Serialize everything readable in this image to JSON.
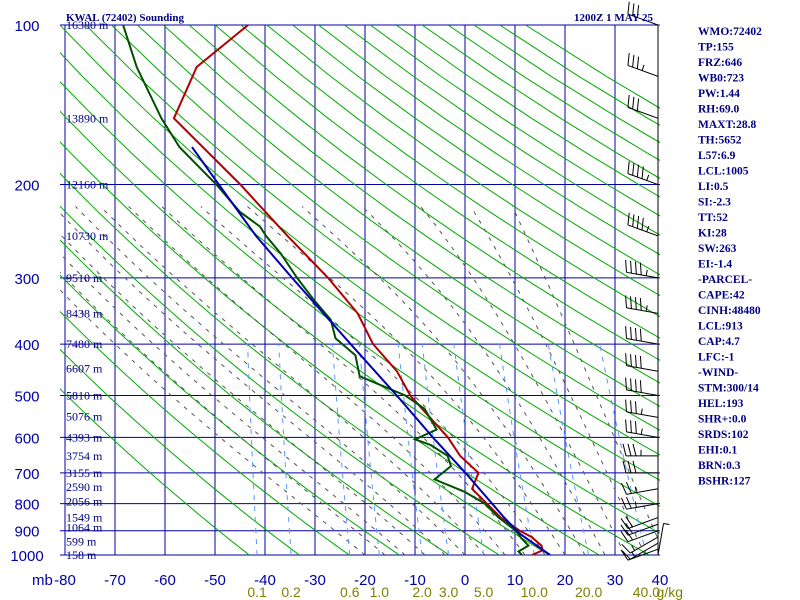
{
  "header": {
    "title": "KWAL (72402) Sounding",
    "time": "1200Z  1 MAY 25"
  },
  "chart_data": {
    "type": "line",
    "title": "KWAL (72402) Sounding",
    "x_unit_label": "mb",
    "mixing_ratio_unit": "g/kg",
    "pressure_ticks": [
      {
        "p": 100,
        "label": "100"
      },
      {
        "p": 200,
        "label": "200"
      },
      {
        "p": 300,
        "label": "300"
      },
      {
        "p": 400,
        "label": "400"
      },
      {
        "p": 500,
        "label": "500"
      },
      {
        "p": 600,
        "label": "600"
      },
      {
        "p": 700,
        "label": "700"
      },
      {
        "p": 800,
        "label": "800"
      },
      {
        "p": 900,
        "label": "900"
      },
      {
        "p": 1000,
        "label": "1000"
      }
    ],
    "temperature_ticks": [
      {
        "t": -80,
        "label": "-80"
      },
      {
        "t": -70,
        "label": "-70"
      },
      {
        "t": -60,
        "label": "-60"
      },
      {
        "t": -50,
        "label": "-50"
      },
      {
        "t": -40,
        "label": "-40"
      },
      {
        "t": -30,
        "label": "-30"
      },
      {
        "t": -20,
        "label": "-20"
      },
      {
        "t": -10,
        "label": "-10"
      },
      {
        "t": 0,
        "label": "0"
      },
      {
        "t": 10,
        "label": "10"
      },
      {
        "t": 20,
        "label": "20"
      },
      {
        "t": 30,
        "label": "30"
      },
      {
        "t": 40,
        "label": "40"
      }
    ],
    "mixing_ratio_labels": [
      {
        "w": 0.1,
        "label": "0.1"
      },
      {
        "w": 0.2,
        "label": "0.2"
      },
      {
        "w": 0.6,
        "label": "0.6"
      },
      {
        "w": 1.0,
        "label": "1.0"
      },
      {
        "w": 2.0,
        "label": "2.0"
      },
      {
        "w": 3.0,
        "label": "3.0"
      },
      {
        "w": 5.0,
        "label": "5.0"
      },
      {
        "w": 10.0,
        "label": "10.0"
      },
      {
        "w": 20.0,
        "label": "20.0"
      },
      {
        "w": 40.0,
        "label": "40.0"
      }
    ],
    "height_labels": [
      {
        "p": 1000,
        "label": "158 m"
      },
      {
        "p": 943,
        "label": "599 m"
      },
      {
        "p": 887,
        "label": "1064 m"
      },
      {
        "p": 850,
        "label": "1549 m"
      },
      {
        "p": 793,
        "label": "2056 m"
      },
      {
        "p": 745,
        "label": "2590 m"
      },
      {
        "p": 700,
        "label": "3155 m"
      },
      {
        "p": 650,
        "label": "3754 m"
      },
      {
        "p": 600,
        "label": "4393 m"
      },
      {
        "p": 548,
        "label": "5076 m"
      },
      {
        "p": 500,
        "label": "5810 m"
      },
      {
        "p": 445,
        "label": "6607 m"
      },
      {
        "p": 400,
        "label": "7480 m"
      },
      {
        "p": 350,
        "label": "8438 m"
      },
      {
        "p": 300,
        "label": "9510 m"
      },
      {
        "p": 250,
        "label": "10730 m"
      },
      {
        "p": 200,
        "label": "12160 m"
      },
      {
        "p": 150,
        "label": "13890 m"
      },
      {
        "p": 100,
        "label": "16380 m"
      }
    ],
    "series": [
      {
        "name": "temperature",
        "color": "#b00000",
        "points": [
          [
            1000,
            13.4
          ],
          [
            980,
            15.4
          ],
          [
            960,
            15.0
          ],
          [
            925,
            12.8
          ],
          [
            900,
            10.2
          ],
          [
            850,
            6.0
          ],
          [
            800,
            2.8
          ],
          [
            750,
            -0.6
          ],
          [
            700,
            0.2
          ],
          [
            650,
            -4.0
          ],
          [
            600,
            -7.0
          ],
          [
            550,
            -11.2
          ],
          [
            500,
            -15.8
          ],
          [
            450,
            -19.2
          ],
          [
            400,
            -24.8
          ],
          [
            350,
            -28.8
          ],
          [
            300,
            -35.8
          ],
          [
            250,
            -45.2
          ],
          [
            200,
            -56.2
          ],
          [
            150,
            -71.5
          ],
          [
            120,
            -68.5
          ],
          [
            100,
            -59.5
          ]
        ]
      },
      {
        "name": "dewpoint",
        "color": "#005000",
        "points": [
          [
            1000,
            11.4
          ],
          [
            985,
            10.6
          ],
          [
            960,
            12.4
          ],
          [
            930,
            10.8
          ],
          [
            900,
            9.4
          ],
          [
            850,
            5.6
          ],
          [
            800,
            2.4
          ],
          [
            760,
            -2.0
          ],
          [
            720,
            -8.4
          ],
          [
            680,
            -5.5
          ],
          [
            650,
            -6.5
          ],
          [
            620,
            -10.2
          ],
          [
            605,
            -13.5
          ],
          [
            580,
            -9.5
          ],
          [
            530,
            -12.5
          ],
          [
            500,
            -16.8
          ],
          [
            460,
            -26.5
          ],
          [
            420,
            -28.0
          ],
          [
            390,
            -32.5
          ],
          [
            360,
            -34.0
          ],
          [
            330,
            -38.0
          ],
          [
            300,
            -42.0
          ],
          [
            270,
            -46.0
          ],
          [
            250,
            -49.5
          ],
          [
            240,
            -51.0
          ],
          [
            225,
            -55.5
          ],
          [
            200,
            -61.0
          ],
          [
            170,
            -69.5
          ],
          [
            150,
            -74.0
          ],
          [
            120,
            -80.5
          ],
          [
            100,
            -84.5
          ]
        ]
      },
      {
        "name": "parcel",
        "color": "#0000b0",
        "points": [
          [
            1000,
            17.0
          ],
          [
            913,
            10.4
          ],
          [
            850,
            6.7
          ],
          [
            700,
            -2.4
          ],
          [
            600,
            -10.0
          ],
          [
            500,
            -18.5
          ],
          [
            400,
            -29.3
          ],
          [
            300,
            -43.0
          ],
          [
            250,
            -51.5
          ],
          [
            200,
            -60.5
          ],
          [
            170,
            -67.0
          ]
        ]
      }
    ],
    "winds": [
      {
        "p": 1000,
        "dir": 10,
        "spd": 5
      },
      {
        "p": 975,
        "dir": 250,
        "spd": 10
      },
      {
        "p": 950,
        "dir": 240,
        "spd": 15
      },
      {
        "p": 925,
        "dir": 240,
        "spd": 15
      },
      {
        "p": 900,
        "dir": 250,
        "spd": 20
      },
      {
        "p": 875,
        "dir": 250,
        "spd": 20
      },
      {
        "p": 850,
        "dir": 250,
        "spd": 20
      },
      {
        "p": 800,
        "dir": 260,
        "spd": 25
      },
      {
        "p": 750,
        "dir": 260,
        "spd": 25
      },
      {
        "p": 700,
        "dir": 270,
        "spd": 30
      },
      {
        "p": 650,
        "dir": 270,
        "spd": 35
      },
      {
        "p": 600,
        "dir": 280,
        "spd": 35
      },
      {
        "p": 550,
        "dir": 280,
        "spd": 35
      },
      {
        "p": 500,
        "dir": 280,
        "spd": 40
      },
      {
        "p": 450,
        "dir": 280,
        "spd": 40
      },
      {
        "p": 400,
        "dir": 280,
        "spd": 40
      },
      {
        "p": 350,
        "dir": 280,
        "spd": 45
      },
      {
        "p": 300,
        "dir": 280,
        "spd": 45
      },
      {
        "p": 250,
        "dir": 290,
        "spd": 45
      },
      {
        "p": 200,
        "dir": 290,
        "spd": 45
      },
      {
        "p": 150,
        "dir": 290,
        "spd": 30
      },
      {
        "p": 125,
        "dir": 290,
        "spd": 35
      },
      {
        "p": 100,
        "dir": 290,
        "spd": 30
      }
    ],
    "colors": {
      "grid": "#0000aa",
      "dry_adiabat": "#00aa00",
      "moist_adiabat": "#555555",
      "mixing_ratio": "#5599ff",
      "labels": "#000080",
      "mixing_label": "#808000"
    }
  },
  "indices": [
    "WMO:72402",
    "TP:155",
    "FRZ:646",
    "WB0:723",
    "PW:1.44",
    "RH:69.0",
    "MAXT:28.8",
    "TH:5652",
    "L57:6.9",
    "LCL:1005",
    "LI:0.5",
    "SI:-2.3",
    "TT:52",
    "KI:28",
    "SW:263",
    "EI:-1.4",
    "-PARCEL-",
    "CAPE:42",
    "CINH:48480",
    "LCL:913",
    "CAP:4.7",
    "LFC:-1",
    "-WIND-",
    "STM:300/14",
    "HEL:193",
    "SHR+:0.0",
    "SRDS:102",
    "EHI:0.1",
    "BRN:0.3",
    "BSHR:127"
  ]
}
